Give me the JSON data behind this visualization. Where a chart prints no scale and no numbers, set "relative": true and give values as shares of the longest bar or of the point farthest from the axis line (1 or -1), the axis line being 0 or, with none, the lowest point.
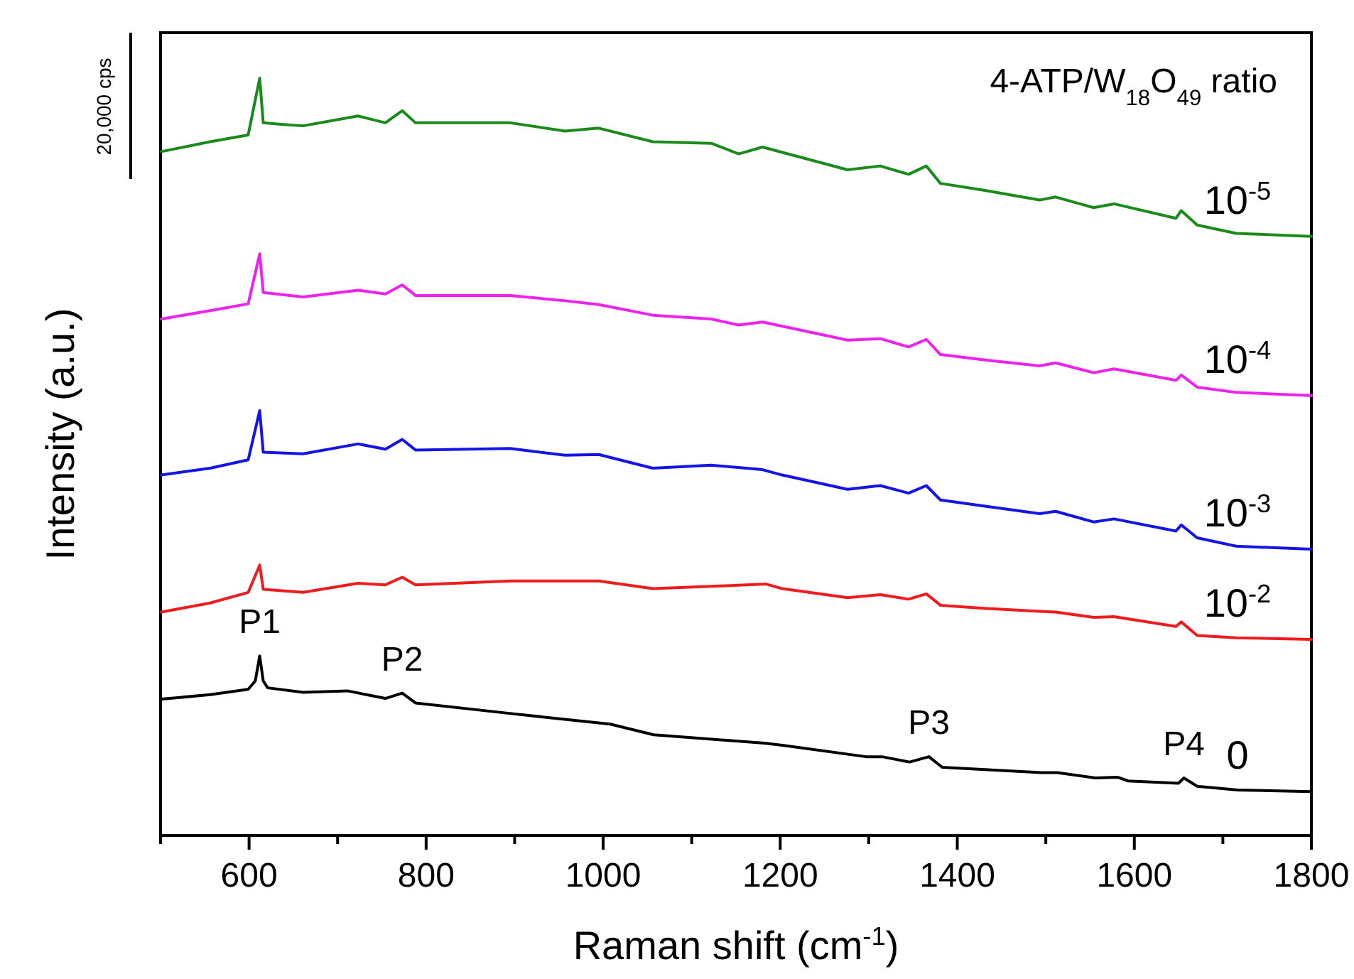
{
  "chart_data": {
    "type": "line",
    "relative": true,
    "xlabel": "Raman shift (cm$^{-1}$)",
    "ylabel": "Intensity (a.u.)",
    "legend_title": "4-ATP/W$_{18}$O$_{49}$ ratio",
    "xlim": [
      500,
      1800
    ],
    "xticks": [
      {
        "value": 500,
        "label": null
      },
      600,
      {
        "value": 700,
        "label": null
      },
      800,
      {
        "value": 900,
        "label": null
      },
      1000,
      {
        "value": 1100,
        "label": null
      },
      1200,
      {
        "value": 1300,
        "label": null
      },
      1400,
      {
        "value": 1500,
        "label": null
      },
      1600,
      {
        "value": 1700,
        "label": null
      },
      1800
    ],
    "tick_labels": "x",
    "marker": "none",
    "line_style": "solid",
    "grid": false,
    "annotations": [
      "20,000 cps",
      {
        "text": "P1",
        "x": 612,
        "y": 0.237
      },
      {
        "text": "P2",
        "x": 773,
        "y": 0.188
      },
      {
        "text": "P3",
        "x": 1368,
        "y": 0.104
      },
      {
        "text": "P4",
        "x": 1656,
        "y": 0.076
      }
    ],
    "series": [
      {
        "name": "0",
        "color": "#000000",
        "x": [
          501,
          556,
          599,
          607,
          612,
          616,
          621,
          661,
          711,
          754,
          773,
          788,
          896,
          1008,
          1057,
          1123,
          1182,
          1204,
          1297,
          1315,
          1346,
          1368,
          1383,
          1495,
          1513,
          1556,
          1581,
          1593,
          1650,
          1656,
          1671,
          1717,
          1800
        ],
        "values": [
          0.18,
          0.186,
          0.193,
          0.204,
          0.237,
          0.204,
          0.195,
          0.189,
          0.191,
          0.181,
          0.188,
          0.175,
          0.161,
          0.147,
          0.133,
          0.127,
          0.122,
          0.119,
          0.104,
          0.104,
          0.097,
          0.104,
          0.09,
          0.083,
          0.083,
          0.076,
          0.077,
          0.072,
          0.069,
          0.076,
          0.065,
          0.06,
          0.058
        ]
      },
      {
        "name": "10$^{-2}$",
        "color": "#ee1c1c",
        "x": [
          501,
          556,
          599,
          612,
          616,
          661,
          723,
          754,
          773,
          788,
          895,
          995,
          1056,
          1122,
          1184,
          1202,
          1276,
          1313,
          1345,
          1365,
          1381,
          1430,
          1493,
          1511,
          1554,
          1577,
          1647,
          1653,
          1671,
          1715,
          1800
        ],
        "values": [
          0.295,
          0.307,
          0.321,
          0.357,
          0.325,
          0.321,
          0.333,
          0.331,
          0.341,
          0.331,
          0.336,
          0.336,
          0.326,
          0.329,
          0.332,
          0.326,
          0.314,
          0.318,
          0.312,
          0.319,
          0.304,
          0.3,
          0.296,
          0.295,
          0.288,
          0.289,
          0.276,
          0.282,
          0.264,
          0.261,
          0.259
        ]
      },
      {
        "name": "10$^{-3}$",
        "color": "#1414e6",
        "x": [
          501,
          556,
          599,
          612,
          616,
          661,
          723,
          754,
          773,
          788,
          895,
          957,
          995,
          1056,
          1122,
          1180,
          1202,
          1276,
          1313,
          1345,
          1365,
          1381,
          1430,
          1493,
          1511,
          1554,
          1577,
          1647,
          1653,
          1671,
          1715,
          1800
        ],
        "values": [
          0.476,
          0.485,
          0.496,
          0.561,
          0.506,
          0.504,
          0.517,
          0.51,
          0.523,
          0.509,
          0.511,
          0.502,
          0.503,
          0.485,
          0.489,
          0.483,
          0.476,
          0.457,
          0.462,
          0.452,
          0.462,
          0.443,
          0.435,
          0.425,
          0.428,
          0.414,
          0.418,
          0.402,
          0.41,
          0.393,
          0.382,
          0.378
        ]
      },
      {
        "name": "10$^{-4}$",
        "color": "#ee22ee",
        "x": [
          501,
          556,
          599,
          612,
          616,
          661,
          723,
          754,
          773,
          788,
          895,
          957,
          995,
          1056,
          1122,
          1153,
          1180,
          1276,
          1313,
          1345,
          1365,
          1381,
          1430,
          1493,
          1511,
          1554,
          1577,
          1647,
          1653,
          1671,
          1715,
          1800
        ],
        "values": [
          0.682,
          0.693,
          0.702,
          0.768,
          0.717,
          0.711,
          0.72,
          0.715,
          0.727,
          0.713,
          0.713,
          0.706,
          0.701,
          0.687,
          0.682,
          0.674,
          0.678,
          0.654,
          0.656,
          0.645,
          0.655,
          0.635,
          0.628,
          0.62,
          0.624,
          0.611,
          0.616,
          0.601,
          0.608,
          0.592,
          0.585,
          0.581
        ]
      },
      {
        "name": "10$^{-5}$",
        "color": "#1a8a1a",
        "x": [
          501,
          556,
          599,
          612,
          616,
          636,
          661,
          723,
          754,
          773,
          788,
          895,
          957,
          995,
          1056,
          1122,
          1153,
          1180,
          1276,
          1313,
          1345,
          1365,
          1381,
          1430,
          1493,
          1511,
          1554,
          1577,
          1647,
          1653,
          1671,
          1715,
          1800
        ],
        "values": [
          0.903,
          0.916,
          0.925,
          1,
          0.941,
          0.939,
          0.937,
          0.95,
          0.941,
          0.957,
          0.941,
          0.941,
          0.93,
          0.934,
          0.916,
          0.914,
          0.9,
          0.909,
          0.879,
          0.884,
          0.873,
          0.884,
          0.861,
          0.852,
          0.839,
          0.843,
          0.829,
          0.834,
          0.815,
          0.825,
          0.806,
          0.795,
          0.791
        ]
      }
    ]
  }
}
